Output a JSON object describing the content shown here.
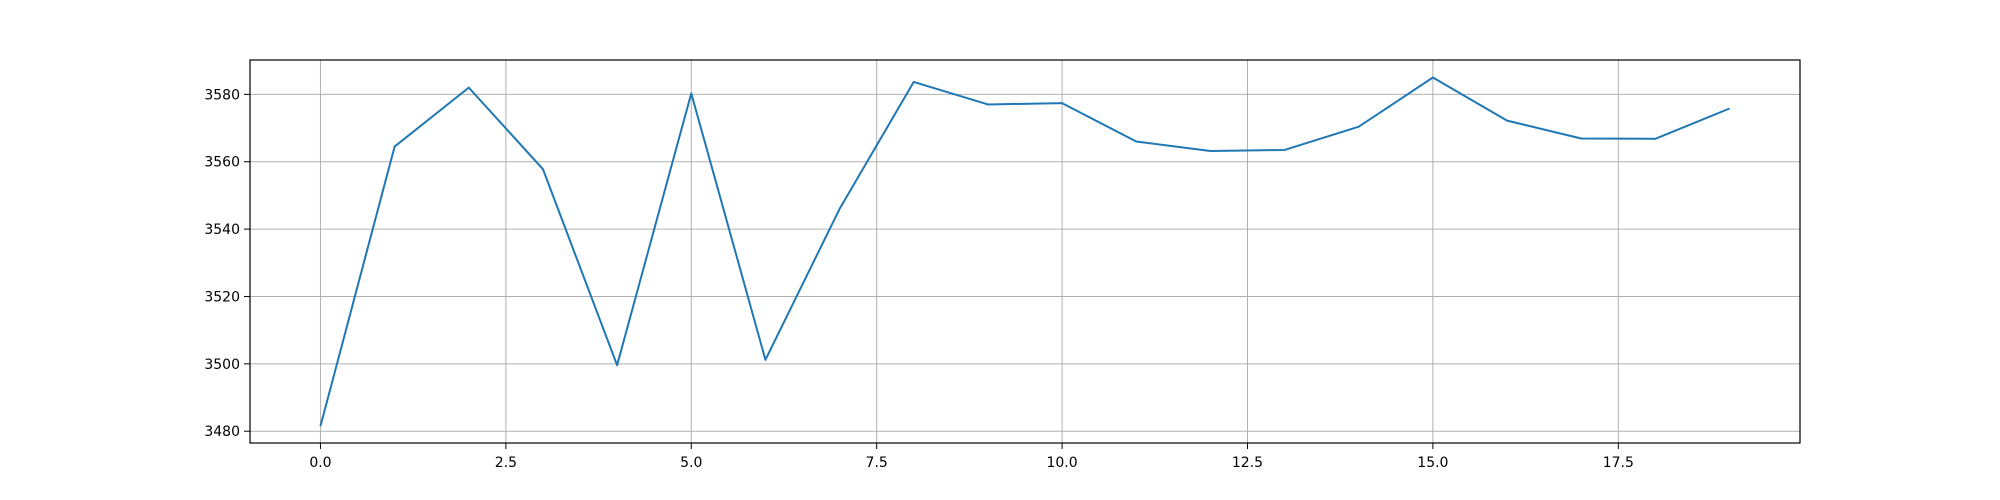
{
  "chart_data": {
    "type": "line",
    "title": "",
    "xlabel": "",
    "ylabel": "",
    "xlim": [
      -0.95,
      19.95
    ],
    "ylim": [
      3476.5,
      3590.2
    ],
    "grid": true,
    "legend": "none",
    "x_ticks": [
      0.0,
      2.5,
      5.0,
      7.5,
      10.0,
      12.5,
      15.0,
      17.5
    ],
    "x_tick_labels": [
      "0.0",
      "2.5",
      "5.0",
      "7.5",
      "10.0",
      "12.5",
      "15.0",
      "17.5"
    ],
    "y_ticks": [
      3480,
      3500,
      3520,
      3540,
      3560,
      3580
    ],
    "y_tick_labels": [
      "3480",
      "3500",
      "3520",
      "3540",
      "3560",
      "3580"
    ],
    "series": [
      {
        "color": "#1f77b4",
        "x": [
          0,
          1,
          2,
          3,
          4,
          5,
          6,
          7,
          8,
          9,
          10,
          11,
          12,
          13,
          14,
          15,
          16,
          17,
          18,
          19
        ],
        "y": [
          3481.5,
          3564.5,
          3582.0,
          3557.8,
          3499.6,
          3580.3,
          3501.2,
          3546.0,
          3583.7,
          3577.0,
          3577.4,
          3566.0,
          3563.2,
          3563.5,
          3570.4,
          3585.0,
          3572.2,
          3566.9,
          3566.8,
          3575.8
        ]
      }
    ]
  }
}
